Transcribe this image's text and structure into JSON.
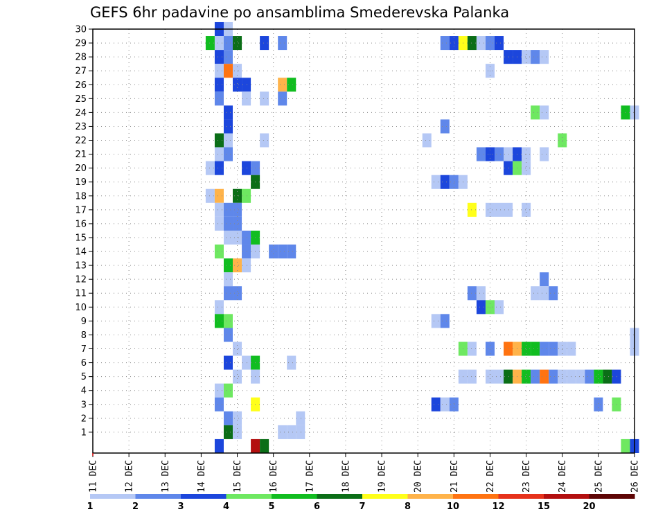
{
  "chart_data": {
    "type": "heatmap",
    "title": "GEFS 6hr padavine po ansamblima Smederevska Palanka",
    "xlabel": "",
    "ylabel": "",
    "x_ticks": [
      "11 DEC",
      "12 DEC",
      "13 DEC",
      "14 DEC",
      "15 DEC",
      "16 DEC",
      "17 DEC",
      "18 DEC",
      "19 DEC",
      "20 DEC",
      "21 DEC",
      "22 DEC",
      "23 DEC",
      "24 DEC",
      "25 DEC",
      "26 DEC"
    ],
    "y_ticks": [
      "1",
      "2",
      "3",
      "4",
      "5",
      "6",
      "7",
      "8",
      "9",
      "10",
      "11",
      "12",
      "13",
      "14",
      "15",
      "16",
      "17",
      "18",
      "19",
      "20",
      "21",
      "22",
      "23",
      "24",
      "25",
      "26",
      "27",
      "28",
      "29",
      "30"
    ],
    "xlim": [
      0,
      60
    ],
    "ylim": [
      0,
      30
    ],
    "grid": true,
    "time_step_hours": 6,
    "colorbar": {
      "labels": [
        "1",
        "2",
        "3",
        "4",
        "5",
        "6",
        "7",
        "8",
        "10",
        "12",
        "15",
        "20"
      ],
      "colors": [
        "#b5c8f5",
        "#5f87ea",
        "#1c46dc",
        "#6ee861",
        "#11bd20",
        "#0b6e17",
        "#ffff1a",
        "#ffb34a",
        "#ff7311",
        "#e6321b",
        "#b30f0f",
        "#5e0505"
      ]
    },
    "cells": [
      {
        "step": 14,
        "member": 30,
        "level": 3
      },
      {
        "step": 15,
        "member": 30,
        "level": 1
      },
      {
        "step": 13,
        "member": 29,
        "level": 5
      },
      {
        "step": 14,
        "member": 29,
        "level": 1
      },
      {
        "step": 15,
        "member": 29,
        "level": 2
      },
      {
        "step": 16,
        "member": 29,
        "level": 6
      },
      {
        "step": 19,
        "member": 29,
        "level": 3
      },
      {
        "step": 21,
        "member": 29,
        "level": 2
      },
      {
        "step": 39,
        "member": 29,
        "level": 2
      },
      {
        "step": 40,
        "member": 29,
        "level": 3
      },
      {
        "step": 41,
        "member": 29,
        "level": 7
      },
      {
        "step": 42,
        "member": 29,
        "level": 6
      },
      {
        "step": 43,
        "member": 29,
        "level": 1
      },
      {
        "step": 44,
        "member": 29,
        "level": 2
      },
      {
        "step": 45,
        "member": 29,
        "level": 3
      },
      {
        "step": 14,
        "member": 28,
        "level": 3
      },
      {
        "step": 15,
        "member": 28,
        "level": 2
      },
      {
        "step": 46,
        "member": 28,
        "level": 3
      },
      {
        "step": 47,
        "member": 28,
        "level": 3
      },
      {
        "step": 48,
        "member": 28,
        "level": 1
      },
      {
        "step": 49,
        "member": 28,
        "level": 2
      },
      {
        "step": 50,
        "member": 28,
        "level": 1
      },
      {
        "step": 14,
        "member": 27,
        "level": 1
      },
      {
        "step": 15,
        "member": 27,
        "level": 9
      },
      {
        "step": 16,
        "member": 27,
        "level": 1
      },
      {
        "step": 44,
        "member": 27,
        "level": 1
      },
      {
        "step": 14,
        "member": 26,
        "level": 3
      },
      {
        "step": 16,
        "member": 26,
        "level": 3
      },
      {
        "step": 17,
        "member": 26,
        "level": 3
      },
      {
        "step": 21,
        "member": 26,
        "level": 8
      },
      {
        "step": 22,
        "member": 26,
        "level": 5
      },
      {
        "step": 14,
        "member": 25,
        "level": 2
      },
      {
        "step": 17,
        "member": 25,
        "level": 1
      },
      {
        "step": 19,
        "member": 25,
        "level": 1
      },
      {
        "step": 21,
        "member": 25,
        "level": 2
      },
      {
        "step": 15,
        "member": 24,
        "level": 3
      },
      {
        "step": 49,
        "member": 24,
        "level": 4
      },
      {
        "step": 50,
        "member": 24,
        "level": 1
      },
      {
        "step": 59,
        "member": 24,
        "level": 5
      },
      {
        "step": 60,
        "member": 24,
        "level": 1
      },
      {
        "step": 15,
        "member": 23,
        "level": 3
      },
      {
        "step": 39,
        "member": 23,
        "level": 2
      },
      {
        "step": 14,
        "member": 22,
        "level": 6
      },
      {
        "step": 15,
        "member": 22,
        "level": 1
      },
      {
        "step": 19,
        "member": 22,
        "level": 1
      },
      {
        "step": 37,
        "member": 22,
        "level": 1
      },
      {
        "step": 52,
        "member": 22,
        "level": 4
      },
      {
        "step": 14,
        "member": 21,
        "level": 1
      },
      {
        "step": 15,
        "member": 21,
        "level": 2
      },
      {
        "step": 43,
        "member": 21,
        "level": 2
      },
      {
        "step": 44,
        "member": 21,
        "level": 3
      },
      {
        "step": 45,
        "member": 21,
        "level": 2
      },
      {
        "step": 46,
        "member": 21,
        "level": 1
      },
      {
        "step": 47,
        "member": 21,
        "level": 3
      },
      {
        "step": 48,
        "member": 21,
        "level": 1
      },
      {
        "step": 50,
        "member": 21,
        "level": 1
      },
      {
        "step": 13,
        "member": 20,
        "level": 1
      },
      {
        "step": 14,
        "member": 20,
        "level": 3
      },
      {
        "step": 17,
        "member": 20,
        "level": 3
      },
      {
        "step": 18,
        "member": 20,
        "level": 2
      },
      {
        "step": 46,
        "member": 20,
        "level": 3
      },
      {
        "step": 47,
        "member": 20,
        "level": 4
      },
      {
        "step": 48,
        "member": 20,
        "level": 1
      },
      {
        "step": 18,
        "member": 19,
        "level": 6
      },
      {
        "step": 38,
        "member": 19,
        "level": 1
      },
      {
        "step": 39,
        "member": 19,
        "level": 3
      },
      {
        "step": 40,
        "member": 19,
        "level": 2
      },
      {
        "step": 41,
        "member": 19,
        "level": 1
      },
      {
        "step": 13,
        "member": 18,
        "level": 1
      },
      {
        "step": 14,
        "member": 18,
        "level": 8
      },
      {
        "step": 16,
        "member": 18,
        "level": 6
      },
      {
        "step": 17,
        "member": 18,
        "level": 4
      },
      {
        "step": 14,
        "member": 17,
        "level": 1
      },
      {
        "step": 15,
        "member": 17,
        "level": 2
      },
      {
        "step": 16,
        "member": 17,
        "level": 2
      },
      {
        "step": 42,
        "member": 17,
        "level": 7
      },
      {
        "step": 44,
        "member": 17,
        "level": 1
      },
      {
        "step": 45,
        "member": 17,
        "level": 1
      },
      {
        "step": 46,
        "member": 17,
        "level": 1
      },
      {
        "step": 48,
        "member": 17,
        "level": 1
      },
      {
        "step": 14,
        "member": 16,
        "level": 1
      },
      {
        "step": 15,
        "member": 16,
        "level": 2
      },
      {
        "step": 16,
        "member": 16,
        "level": 2
      },
      {
        "step": 15,
        "member": 15,
        "level": 1
      },
      {
        "step": 16,
        "member": 15,
        "level": 1
      },
      {
        "step": 17,
        "member": 15,
        "level": 2
      },
      {
        "step": 18,
        "member": 15,
        "level": 5
      },
      {
        "step": 14,
        "member": 14,
        "level": 4
      },
      {
        "step": 17,
        "member": 14,
        "level": 2
      },
      {
        "step": 18,
        "member": 14,
        "level": 1
      },
      {
        "step": 20,
        "member": 14,
        "level": 2
      },
      {
        "step": 21,
        "member": 14,
        "level": 2
      },
      {
        "step": 22,
        "member": 14,
        "level": 2
      },
      {
        "step": 15,
        "member": 13,
        "level": 5
      },
      {
        "step": 16,
        "member": 13,
        "level": 8
      },
      {
        "step": 17,
        "member": 13,
        "level": 1
      },
      {
        "step": 15,
        "member": 12,
        "level": 1
      },
      {
        "step": 50,
        "member": 12,
        "level": 2
      },
      {
        "step": 15,
        "member": 11,
        "level": 2
      },
      {
        "step": 16,
        "member": 11,
        "level": 2
      },
      {
        "step": 42,
        "member": 11,
        "level": 2
      },
      {
        "step": 43,
        "member": 11,
        "level": 1
      },
      {
        "step": 49,
        "member": 11,
        "level": 1
      },
      {
        "step": 50,
        "member": 11,
        "level": 1
      },
      {
        "step": 51,
        "member": 11,
        "level": 2
      },
      {
        "step": 14,
        "member": 10,
        "level": 1
      },
      {
        "step": 43,
        "member": 10,
        "level": 3
      },
      {
        "step": 44,
        "member": 10,
        "level": 4
      },
      {
        "step": 45,
        "member": 10,
        "level": 1
      },
      {
        "step": 14,
        "member": 9,
        "level": 5
      },
      {
        "step": 15,
        "member": 9,
        "level": 4
      },
      {
        "step": 38,
        "member": 9,
        "level": 1
      },
      {
        "step": 39,
        "member": 9,
        "level": 2
      },
      {
        "step": 15,
        "member": 8,
        "level": 2
      },
      {
        "step": 60,
        "member": 8,
        "level": 1
      },
      {
        "step": 16,
        "member": 7,
        "level": 1
      },
      {
        "step": 41,
        "member": 7,
        "level": 4
      },
      {
        "step": 42,
        "member": 7,
        "level": 1
      },
      {
        "step": 44,
        "member": 7,
        "level": 2
      },
      {
        "step": 46,
        "member": 7,
        "level": 9
      },
      {
        "step": 47,
        "member": 7,
        "level": 8
      },
      {
        "step": 48,
        "member": 7,
        "level": 5
      },
      {
        "step": 49,
        "member": 7,
        "level": 5
      },
      {
        "step": 50,
        "member": 7,
        "level": 2
      },
      {
        "step": 51,
        "member": 7,
        "level": 2
      },
      {
        "step": 52,
        "member": 7,
        "level": 1
      },
      {
        "step": 53,
        "member": 7,
        "level": 1
      },
      {
        "step": 60,
        "member": 7,
        "level": 1
      },
      {
        "step": 15,
        "member": 6,
        "level": 3
      },
      {
        "step": 17,
        "member": 6,
        "level": 1
      },
      {
        "step": 18,
        "member": 6,
        "level": 5
      },
      {
        "step": 22,
        "member": 6,
        "level": 1
      },
      {
        "step": 16,
        "member": 5,
        "level": 1
      },
      {
        "step": 18,
        "member": 5,
        "level": 1
      },
      {
        "step": 41,
        "member": 5,
        "level": 1
      },
      {
        "step": 42,
        "member": 5,
        "level": 1
      },
      {
        "step": 44,
        "member": 5,
        "level": 1
      },
      {
        "step": 45,
        "member": 5,
        "level": 1
      },
      {
        "step": 46,
        "member": 5,
        "level": 6
      },
      {
        "step": 47,
        "member": 5,
        "level": 8
      },
      {
        "step": 48,
        "member": 5,
        "level": 5
      },
      {
        "step": 49,
        "member": 5,
        "level": 2
      },
      {
        "step": 50,
        "member": 5,
        "level": 9
      },
      {
        "step": 51,
        "member": 5,
        "level": 2
      },
      {
        "step": 52,
        "member": 5,
        "level": 1
      },
      {
        "step": 53,
        "member": 5,
        "level": 1
      },
      {
        "step": 54,
        "member": 5,
        "level": 1
      },
      {
        "step": 55,
        "member": 5,
        "level": 2
      },
      {
        "step": 56,
        "member": 5,
        "level": 5
      },
      {
        "step": 57,
        "member": 5,
        "level": 6
      },
      {
        "step": 58,
        "member": 5,
        "level": 3
      },
      {
        "step": 14,
        "member": 4,
        "level": 1
      },
      {
        "step": 15,
        "member": 4,
        "level": 4
      },
      {
        "step": 14,
        "member": 3,
        "level": 2
      },
      {
        "step": 18,
        "member": 3,
        "level": 7
      },
      {
        "step": 38,
        "member": 3,
        "level": 3
      },
      {
        "step": 39,
        "member": 3,
        "level": 1
      },
      {
        "step": 40,
        "member": 3,
        "level": 2
      },
      {
        "step": 56,
        "member": 3,
        "level": 2
      },
      {
        "step": 58,
        "member": 3,
        "level": 4
      },
      {
        "step": 15,
        "member": 2,
        "level": 2
      },
      {
        "step": 16,
        "member": 2,
        "level": 1
      },
      {
        "step": 23,
        "member": 2,
        "level": 1
      },
      {
        "step": 15,
        "member": 1,
        "level": 6
      },
      {
        "step": 16,
        "member": 1,
        "level": 1
      },
      {
        "step": 21,
        "member": 1,
        "level": 1
      },
      {
        "step": 22,
        "member": 1,
        "level": 1
      },
      {
        "step": 23,
        "member": 1,
        "level": 1
      },
      {
        "step": 14,
        "member": 0,
        "level": 3
      },
      {
        "step": 18,
        "member": 0,
        "level": 11
      },
      {
        "step": 19,
        "member": 0,
        "level": 6
      },
      {
        "step": 59,
        "member": 0,
        "level": 4
      },
      {
        "step": 60,
        "member": 0,
        "level": 3
      }
    ]
  }
}
